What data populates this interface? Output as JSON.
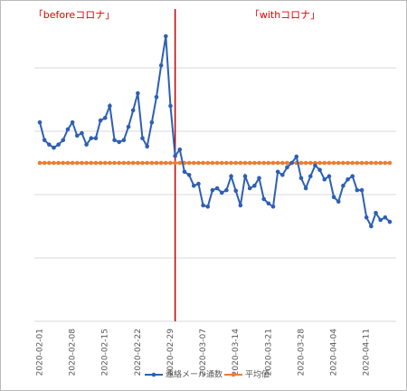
{
  "chart_data": {
    "type": "line",
    "annotations": [
      "「beforeコロナ」",
      "「withコロナ」"
    ],
    "categories": [
      "2020-02-01",
      null,
      null,
      null,
      null,
      null,
      null,
      "2020-02-08",
      null,
      null,
      null,
      null,
      null,
      null,
      "2020-02-15",
      null,
      null,
      null,
      null,
      null,
      null,
      "2020-02-22",
      null,
      null,
      null,
      null,
      null,
      null,
      "2020-02-29",
      null,
      null,
      null,
      null,
      null,
      null,
      "2020-03-07",
      null,
      null,
      null,
      null,
      null,
      null,
      "2020-03-14",
      null,
      null,
      null,
      null,
      null,
      null,
      "2020-03-21",
      null,
      null,
      null,
      null,
      null,
      null,
      "2020-03-28",
      null,
      null,
      null,
      null,
      null,
      null,
      "2020-04-04",
      null,
      null,
      null,
      null,
      null,
      null,
      "2020-04-11",
      null,
      null,
      null,
      null,
      null
    ],
    "series": [
      {
        "name": "連絡メール通数",
        "color": "#2e5fb4",
        "values": [
          3.14,
          2.86,
          2.79,
          2.74,
          2.79,
          2.86,
          3.03,
          3.14,
          2.93,
          2.97,
          2.79,
          2.89,
          2.89,
          3.17,
          3.21,
          3.4,
          2.86,
          2.83,
          2.86,
          3.07,
          3.33,
          3.6,
          2.89,
          2.76,
          3.14,
          3.54,
          4.04,
          4.5,
          3.4,
          2.61,
          2.71,
          2.36,
          2.31,
          2.14,
          2.17,
          1.83,
          1.81,
          2.07,
          2.1,
          2.03,
          2.07,
          2.29,
          2.06,
          1.83,
          2.29,
          2.1,
          2.14,
          2.26,
          1.93,
          1.86,
          1.81,
          2.36,
          2.31,
          2.43,
          2.5,
          2.6,
          2.26,
          2.1,
          2.29,
          2.46,
          2.39,
          2.24,
          2.29,
          1.96,
          1.89,
          2.14,
          2.24,
          2.29,
          2.07,
          2.07,
          1.64,
          1.5,
          1.71,
          1.6,
          1.64,
          1.57
        ]
      },
      {
        "name": "平均値",
        "color": "#ed7d31",
        "values": [
          2.5,
          2.5,
          2.5,
          2.5,
          2.5,
          2.5,
          2.5,
          2.5,
          2.5,
          2.5,
          2.5,
          2.5,
          2.5,
          2.5,
          2.5,
          2.5,
          2.5,
          2.5,
          2.5,
          2.5,
          2.5,
          2.5,
          2.5,
          2.5,
          2.5,
          2.5,
          2.5,
          2.5,
          2.5,
          2.5,
          2.5,
          2.5,
          2.5,
          2.5,
          2.5,
          2.5,
          2.5,
          2.5,
          2.5,
          2.5,
          2.5,
          2.5,
          2.5,
          2.5,
          2.5,
          2.5,
          2.5,
          2.5,
          2.5,
          2.5,
          2.5,
          2.5,
          2.5,
          2.5,
          2.5,
          2.5,
          2.5,
          2.5,
          2.5,
          2.5,
          2.5,
          2.5,
          2.5,
          2.5,
          2.5,
          2.5,
          2.5,
          2.5,
          2.5,
          2.5,
          2.5,
          2.5,
          2.5,
          2.5,
          2.5,
          2.5
        ]
      }
    ],
    "ylim": [
      0,
      5
    ],
    "yticks": [
      0,
      1,
      2,
      3,
      4
    ],
    "grid": true
  }
}
